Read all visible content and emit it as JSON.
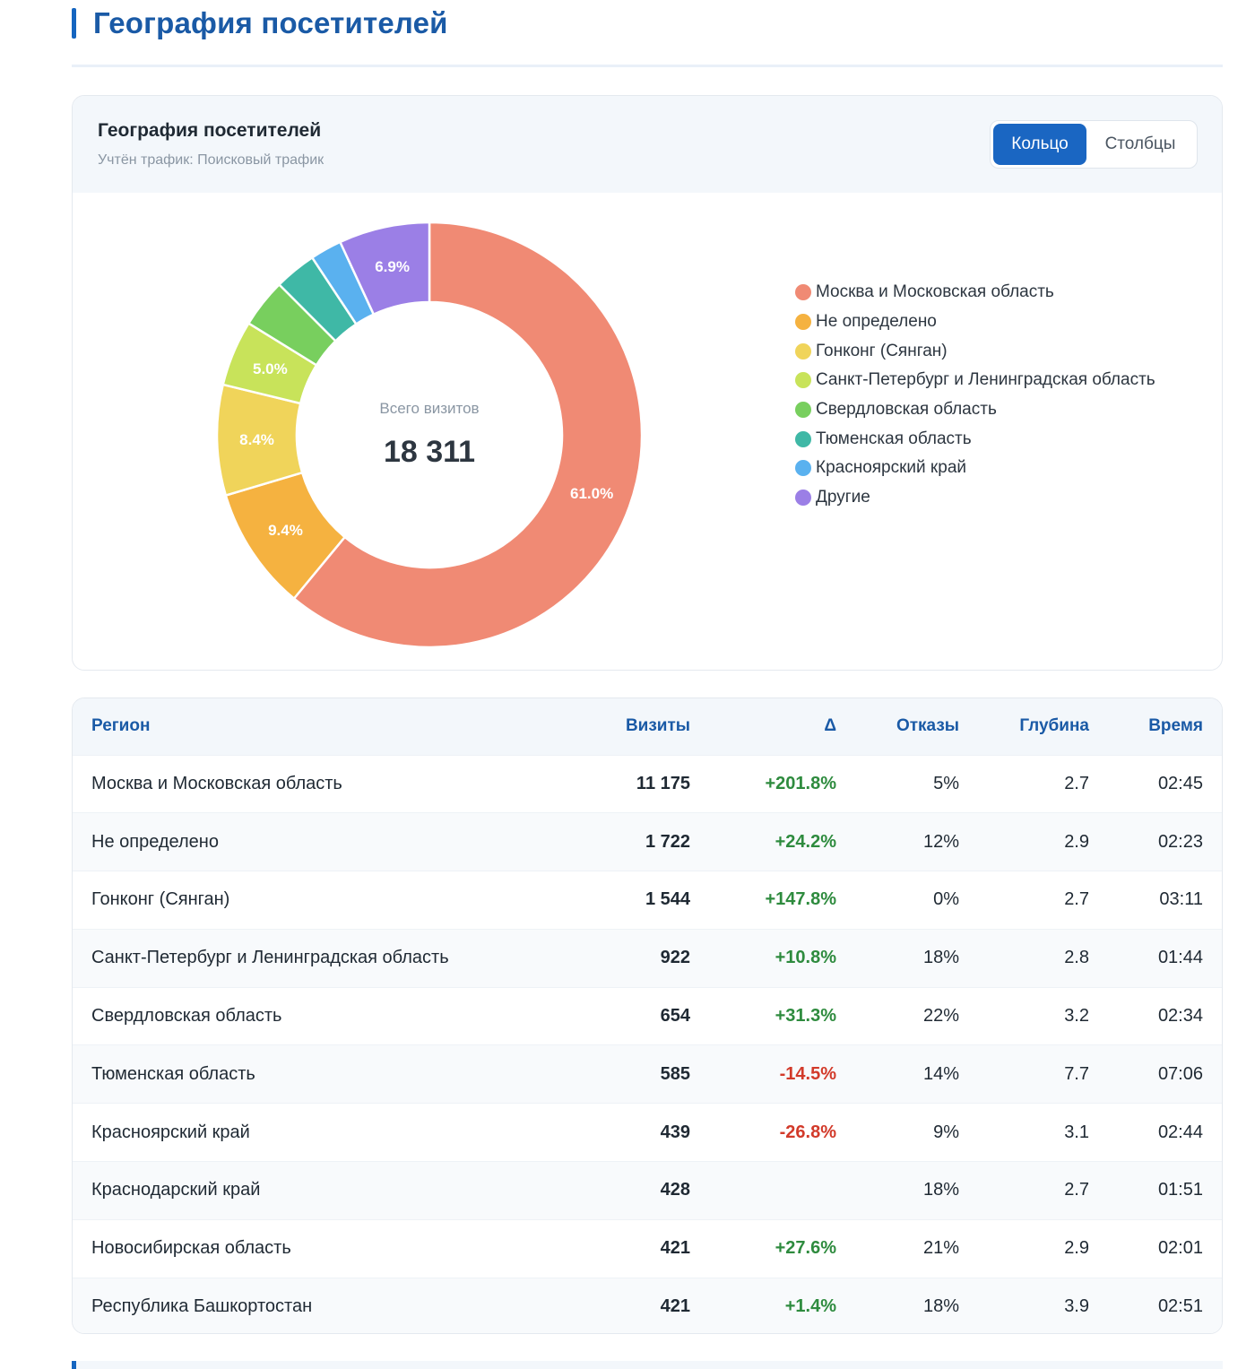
{
  "page_title": "География посетителей",
  "chart_card": {
    "title": "География посетителей",
    "subtitle": "Учтён трафик: Поисковый трафик",
    "toggle": {
      "active": "Кольцо",
      "inactive": "Столбцы"
    },
    "center_label": "Всего визитов",
    "center_value": "18 311"
  },
  "chart_data": {
    "type": "pie",
    "variant": "donut",
    "legend_position": "right",
    "slices": [
      {
        "name": "Москва и Московская область",
        "value": 61.0,
        "label": "61.0%",
        "color": "#f08a74"
      },
      {
        "name": "Не определено",
        "value": 9.4,
        "label": "9.4%",
        "color": "#f5b240"
      },
      {
        "name": "Гонконг (Сянган)",
        "value": 8.4,
        "label": "8.4%",
        "color": "#f0d45a"
      },
      {
        "name": "Санкт-Петербург и Ленинградская область",
        "value": 5.0,
        "label": "5.0%",
        "color": "#c8e35a"
      },
      {
        "name": "Свердловская область",
        "value": 3.7,
        "label": "",
        "color": "#78cf5e"
      },
      {
        "name": "Тюменская область",
        "value": 3.2,
        "label": "",
        "color": "#3fb8a6"
      },
      {
        "name": "Красноярский край",
        "value": 2.4,
        "label": "",
        "color": "#5ab1ef"
      },
      {
        "name": "Другие",
        "value": 6.9,
        "label": "6.9%",
        "color": "#9b7fe6"
      }
    ]
  },
  "table": {
    "headers": [
      "Регион",
      "Визиты",
      "Δ",
      "Отказы",
      "Глубина",
      "Время"
    ],
    "rows": [
      {
        "region": "Москва и Московская область",
        "visits": "11 175",
        "delta": "+201.8%",
        "delta_sign": "pos",
        "bounce": "5%",
        "depth": "2.7",
        "time": "02:45"
      },
      {
        "region": "Не определено",
        "visits": "1 722",
        "delta": "+24.2%",
        "delta_sign": "pos",
        "bounce": "12%",
        "depth": "2.9",
        "time": "02:23"
      },
      {
        "region": "Гонконг (Сянган)",
        "visits": "1 544",
        "delta": "+147.8%",
        "delta_sign": "pos",
        "bounce": "0%",
        "depth": "2.7",
        "time": "03:11"
      },
      {
        "region": "Санкт-Петербург и Ленинградская область",
        "visits": "922",
        "delta": "+10.8%",
        "delta_sign": "pos",
        "bounce": "18%",
        "depth": "2.8",
        "time": "01:44"
      },
      {
        "region": "Свердловская область",
        "visits": "654",
        "delta": "+31.3%",
        "delta_sign": "pos",
        "bounce": "22%",
        "depth": "3.2",
        "time": "02:34"
      },
      {
        "region": "Тюменская область",
        "visits": "585",
        "delta": "-14.5%",
        "delta_sign": "neg",
        "bounce": "14%",
        "depth": "7.7",
        "time": "07:06"
      },
      {
        "region": "Красноярский край",
        "visits": "439",
        "delta": "-26.8%",
        "delta_sign": "neg",
        "bounce": "9%",
        "depth": "3.1",
        "time": "02:44"
      },
      {
        "region": "Краснодарский край",
        "visits": "428",
        "delta": "",
        "delta_sign": "none",
        "bounce": "18%",
        "depth": "2.7",
        "time": "01:51"
      },
      {
        "region": "Новосибирская область",
        "visits": "421",
        "delta": "+27.6%",
        "delta_sign": "pos",
        "bounce": "21%",
        "depth": "2.9",
        "time": "02:01"
      },
      {
        "region": "Республика Башкортостан",
        "visits": "421",
        "delta": "+1.4%",
        "delta_sign": "pos",
        "bounce": "18%",
        "depth": "3.9",
        "time": "02:51"
      }
    ]
  }
}
